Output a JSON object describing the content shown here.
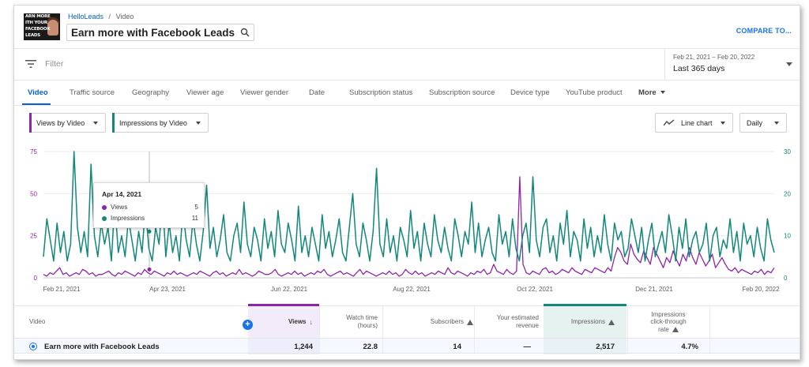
{
  "breadcrumb": {
    "channel": "HelloLeads",
    "separator": "/",
    "section": "Video"
  },
  "thumbnail": {
    "lines": [
      "ARN MORE",
      "ITH YOUR",
      "FACEBOOK",
      "LEADS"
    ]
  },
  "video_title": "Earn more with Facebook Leads",
  "compare_label": "COMPARE TO...",
  "filter": {
    "placeholder": "Filter"
  },
  "date": {
    "range": "Feb 21, 2021 – Feb 20, 2022",
    "label": "Last 365 days"
  },
  "tabs": [
    {
      "label": "Video"
    },
    {
      "label": "Traffic source"
    },
    {
      "label": "Geography"
    },
    {
      "label": "Viewer age"
    },
    {
      "label": "Viewer gender"
    },
    {
      "label": "Date"
    },
    {
      "label": "Subscription status"
    },
    {
      "label": "Subscription source"
    },
    {
      "label": "Device type"
    },
    {
      "label": "YouTube product"
    },
    {
      "label": "More"
    }
  ],
  "selectors": {
    "metric1": "Views by Video",
    "metric2": "Impressions by Video",
    "chart_type": "Line chart",
    "interval": "Daily"
  },
  "colors": {
    "views": "#8e24aa",
    "impressions": "#12877a",
    "accent": "#065fd4"
  },
  "tooltip": {
    "date": "Apr 14, 2021",
    "views_label": "Views",
    "views_value": "5",
    "impr_label": "Impressions",
    "impr_value": "11"
  },
  "chart_data": {
    "type": "line",
    "x_tick_labels": [
      "Feb 21, 2021",
      "Apr 23, 2021",
      "Jun 22, 2021",
      "Aug 22, 2021",
      "Oct 22, 2021",
      "Dec 21, 2021",
      "Feb 20, 2022"
    ],
    "left_axis": {
      "ticks": [
        "0",
        "25",
        "50",
        "75"
      ],
      "range": [
        0,
        75
      ]
    },
    "right_axis": {
      "ticks": [
        "0",
        "10",
        "20",
        "30"
      ],
      "range": [
        0,
        30
      ]
    },
    "series": [
      {
        "name": "Views by Video",
        "axis": "left",
        "values": [
          2,
          1,
          3,
          2,
          4,
          6,
          2,
          3,
          1,
          2,
          3,
          2,
          5,
          4,
          2,
          3,
          1,
          2,
          2,
          3,
          4,
          2,
          1,
          3,
          2,
          4,
          3,
          2,
          1,
          3,
          2,
          5,
          3,
          2,
          4,
          3,
          2,
          1,
          3,
          2,
          4,
          2,
          3,
          2,
          1,
          2,
          3,
          2,
          4,
          3,
          2,
          1,
          3,
          4,
          2,
          3,
          1,
          2,
          3,
          2,
          5,
          2,
          3,
          2,
          1,
          2,
          4,
          3,
          2,
          2,
          3,
          5,
          2,
          1,
          2,
          3,
          2,
          4,
          2,
          3,
          1,
          2,
          3,
          2,
          4,
          3,
          5,
          2,
          1,
          2,
          3,
          4,
          2,
          3,
          2,
          1,
          3,
          5,
          2,
          4,
          3,
          2,
          1,
          2,
          3,
          2,
          4,
          2,
          3,
          1,
          2,
          5,
          3,
          2,
          4,
          2,
          3,
          1,
          2,
          3,
          2,
          4,
          3,
          2,
          6,
          3,
          2,
          4,
          3,
          2,
          1,
          3,
          2,
          4,
          3,
          5,
          2,
          3,
          8,
          4,
          3,
          2,
          5,
          3,
          2,
          4,
          60,
          8,
          3,
          2,
          4,
          3,
          2,
          5,
          6,
          3,
          4,
          2,
          3,
          5,
          4,
          3,
          6,
          4,
          3,
          2,
          5,
          4,
          3,
          6,
          5,
          4,
          3,
          6,
          4,
          12,
          18,
          15,
          10,
          8,
          20,
          14,
          11,
          9,
          16,
          12,
          8,
          18,
          14,
          10,
          6,
          12,
          9,
          16,
          11,
          7,
          14,
          10,
          18,
          12,
          8,
          15,
          11,
          7,
          10,
          14,
          6,
          9,
          12,
          8,
          5,
          4,
          6,
          3,
          5,
          4,
          3,
          2,
          4,
          3,
          5,
          2,
          4,
          3,
          6
        ]
      },
      {
        "name": "Impressions by Video",
        "axis": "right",
        "values": [
          5,
          14,
          9,
          4,
          13,
          6,
          11,
          4,
          8,
          30,
          12,
          6,
          11,
          5,
          27,
          10,
          5,
          13,
          8,
          12,
          4,
          18,
          6,
          10,
          5,
          14,
          9,
          4,
          11,
          6,
          17,
          7,
          4,
          12,
          8,
          19,
          5,
          13,
          6,
          10,
          4,
          16,
          9,
          5,
          14,
          8,
          4,
          11,
          22,
          7,
          12,
          5,
          9,
          15,
          6,
          4,
          10,
          13,
          6,
          18,
          8,
          5,
          12,
          9,
          4,
          14,
          7,
          11,
          5,
          16,
          8,
          6,
          13,
          9,
          4,
          17,
          6,
          10,
          5,
          12,
          8,
          4,
          15,
          7,
          11,
          5,
          9,
          14,
          6,
          4,
          12,
          20,
          8,
          5,
          13,
          9,
          4,
          11,
          26,
          8,
          5,
          14,
          6,
          10,
          4,
          12,
          9,
          5,
          16,
          7,
          11,
          4,
          13,
          8,
          5,
          15,
          9,
          6,
          12,
          7,
          4,
          14,
          10,
          5,
          11,
          8,
          18,
          6,
          13,
          5,
          9,
          12,
          6,
          4,
          15,
          8,
          11,
          5,
          14,
          7,
          4,
          10,
          13,
          6,
          24,
          9,
          5,
          12,
          14,
          6,
          10,
          4,
          13,
          8,
          16,
          5,
          11,
          9,
          4,
          14,
          7,
          12,
          5,
          10,
          6,
          15,
          8,
          4,
          13,
          9,
          11,
          5,
          7,
          14,
          10,
          6,
          12,
          4,
          9,
          13,
          5,
          8,
          11,
          6,
          15,
          10,
          4,
          12,
          7,
          14,
          5,
          9,
          11,
          6,
          8,
          13,
          4,
          10,
          12,
          5,
          9,
          7,
          14,
          6,
          11,
          4,
          13,
          8,
          10,
          5,
          12,
          7,
          4,
          14,
          9,
          6
        ]
      }
    ],
    "grid": true
  },
  "table": {
    "headers": {
      "video": "Video",
      "views": "Views",
      "watch_time": [
        "Watch time",
        "(hours)"
      ],
      "subscribers": "Subscribers",
      "revenue": [
        "Your estimated",
        "revenue"
      ],
      "impressions": "Impressions",
      "ctr": [
        "Impressions",
        "click-through",
        "rate"
      ]
    },
    "row": {
      "video": "Earn more with Facebook Leads",
      "views": "1,244",
      "watch_time": "22.8",
      "subscribers": "14",
      "revenue": "—",
      "impressions": "2,517",
      "ctr": "4.7%"
    }
  }
}
